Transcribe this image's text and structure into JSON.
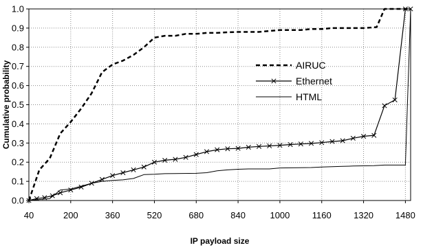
{
  "chart_data": {
    "type": "line",
    "xlabel": "IP payload size",
    "ylabel": "Cumulative probability",
    "xlim": [
      40,
      1500
    ],
    "ylim": [
      0,
      1.0
    ],
    "xticks": [
      40,
      200,
      360,
      520,
      680,
      840,
      1000,
      1160,
      1320,
      1480
    ],
    "yticks": [
      0.0,
      0.1,
      0.2,
      0.3,
      0.4,
      0.5,
      0.6,
      0.7,
      0.8,
      0.9,
      1.0
    ],
    "xtick_labels": [
      "40",
      "200",
      "360",
      "520",
      "680",
      "840",
      "1000",
      "1160",
      "1320",
      "1480"
    ],
    "ytick_labels": [
      "0.0",
      "0.1",
      "0.2",
      "0.3",
      "0.4",
      "0.5",
      "0.6",
      "0.7",
      "0.8",
      "0.9",
      "1.0"
    ],
    "grid": true,
    "grid_style": "dotted",
    "legend_position": "center-right",
    "series": [
      {
        "name": "AIRUC",
        "style": "dashed",
        "marker": "none",
        "points": [
          [
            40,
            0.0
          ],
          [
            80,
            0.16
          ],
          [
            120,
            0.22
          ],
          [
            160,
            0.35
          ],
          [
            200,
            0.41
          ],
          [
            240,
            0.48
          ],
          [
            280,
            0.56
          ],
          [
            320,
            0.67
          ],
          [
            360,
            0.71
          ],
          [
            400,
            0.73
          ],
          [
            440,
            0.76
          ],
          [
            480,
            0.8
          ],
          [
            520,
            0.85
          ],
          [
            560,
            0.86
          ],
          [
            600,
            0.86
          ],
          [
            640,
            0.87
          ],
          [
            680,
            0.87
          ],
          [
            720,
            0.875
          ],
          [
            760,
            0.875
          ],
          [
            800,
            0.878
          ],
          [
            840,
            0.88
          ],
          [
            880,
            0.88
          ],
          [
            920,
            0.88
          ],
          [
            960,
            0.885
          ],
          [
            1000,
            0.89
          ],
          [
            1040,
            0.89
          ],
          [
            1080,
            0.89
          ],
          [
            1120,
            0.895
          ],
          [
            1160,
            0.895
          ],
          [
            1200,
            0.9
          ],
          [
            1240,
            0.9
          ],
          [
            1280,
            0.9
          ],
          [
            1320,
            0.9
          ],
          [
            1370,
            0.905
          ],
          [
            1400,
            1.0
          ],
          [
            1440,
            1.0
          ],
          [
            1480,
            1.0
          ],
          [
            1500,
            1.0
          ]
        ]
      },
      {
        "name": "Ethernet",
        "style": "solid",
        "marker": "x",
        "points": [
          [
            40,
            0.0
          ],
          [
            70,
            0.01
          ],
          [
            100,
            0.015
          ],
          [
            130,
            0.025
          ],
          [
            160,
            0.04
          ],
          [
            200,
            0.055
          ],
          [
            240,
            0.07
          ],
          [
            280,
            0.09
          ],
          [
            320,
            0.11
          ],
          [
            360,
            0.13
          ],
          [
            400,
            0.145
          ],
          [
            440,
            0.16
          ],
          [
            480,
            0.175
          ],
          [
            520,
            0.2
          ],
          [
            560,
            0.21
          ],
          [
            600,
            0.215
          ],
          [
            640,
            0.225
          ],
          [
            680,
            0.24
          ],
          [
            720,
            0.255
          ],
          [
            760,
            0.265
          ],
          [
            800,
            0.27
          ],
          [
            840,
            0.272
          ],
          [
            880,
            0.278
          ],
          [
            920,
            0.282
          ],
          [
            960,
            0.285
          ],
          [
            1000,
            0.288
          ],
          [
            1040,
            0.292
          ],
          [
            1080,
            0.295
          ],
          [
            1120,
            0.298
          ],
          [
            1160,
            0.302
          ],
          [
            1200,
            0.308
          ],
          [
            1240,
            0.312
          ],
          [
            1280,
            0.325
          ],
          [
            1320,
            0.335
          ],
          [
            1360,
            0.34
          ],
          [
            1400,
            0.495
          ],
          [
            1440,
            0.525
          ],
          [
            1480,
            1.0
          ],
          [
            1500,
            1.0
          ]
        ]
      },
      {
        "name": "HTML",
        "style": "solid",
        "marker": "none",
        "points": [
          [
            40,
            0.0
          ],
          [
            80,
            0.005
          ],
          [
            120,
            0.01
          ],
          [
            160,
            0.055
          ],
          [
            200,
            0.06
          ],
          [
            240,
            0.075
          ],
          [
            280,
            0.09
          ],
          [
            320,
            0.1
          ],
          [
            360,
            0.105
          ],
          [
            400,
            0.108
          ],
          [
            440,
            0.115
          ],
          [
            480,
            0.135
          ],
          [
            520,
            0.137
          ],
          [
            560,
            0.14
          ],
          [
            680,
            0.142
          ],
          [
            720,
            0.145
          ],
          [
            760,
            0.155
          ],
          [
            800,
            0.16
          ],
          [
            840,
            0.163
          ],
          [
            880,
            0.165
          ],
          [
            960,
            0.165
          ],
          [
            1000,
            0.17
          ],
          [
            1120,
            0.172
          ],
          [
            1160,
            0.175
          ],
          [
            1240,
            0.178
          ],
          [
            1280,
            0.18
          ],
          [
            1360,
            0.182
          ],
          [
            1400,
            0.185
          ],
          [
            1480,
            0.185
          ],
          [
            1500,
            1.0
          ]
        ]
      }
    ]
  }
}
